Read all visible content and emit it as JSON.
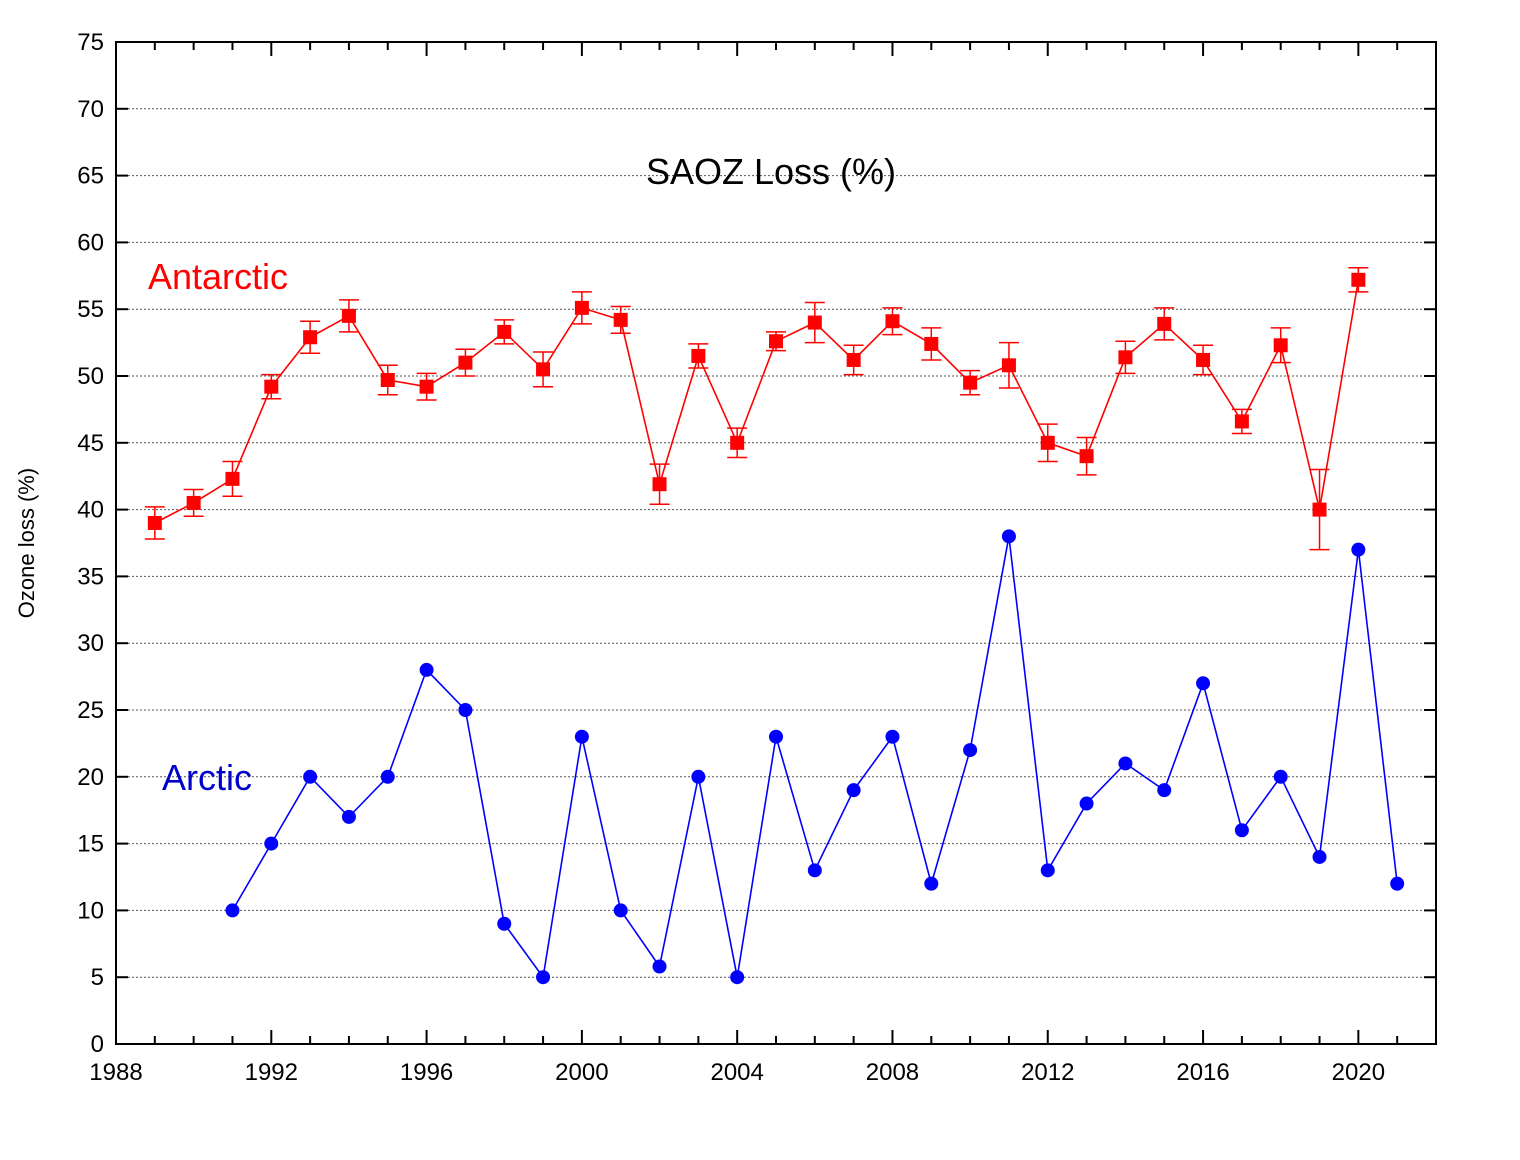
{
  "chart_data": {
    "type": "line",
    "title": "SAOZ Loss (%)",
    "xlabel": "",
    "ylabel": "Ozone loss (%)",
    "xlim": [
      1988,
      2022
    ],
    "ylim": [
      0,
      75
    ],
    "x_ticks": [
      1988,
      1992,
      1996,
      2000,
      2004,
      2008,
      2012,
      2016,
      2020
    ],
    "x_minor_step": 1,
    "y_ticks": [
      0,
      5,
      10,
      15,
      20,
      25,
      30,
      35,
      40,
      45,
      50,
      55,
      60,
      65,
      70,
      75
    ],
    "grid": "horizontal dotted",
    "series": [
      {
        "name": "Antarctic",
        "color": "#ff0000",
        "marker": "square",
        "x": [
          1989,
          1990,
          1991,
          1992,
          1993,
          1994,
          1995,
          1996,
          1997,
          1998,
          1999,
          2000,
          2001,
          2002,
          2003,
          2004,
          2005,
          2006,
          2007,
          2008,
          2009,
          2010,
          2011,
          2012,
          2013,
          2014,
          2015,
          2016,
          2017,
          2018,
          2019,
          2020
        ],
        "values": [
          39.0,
          40.5,
          42.3,
          49.2,
          52.9,
          54.5,
          49.7,
          49.2,
          51.0,
          53.3,
          50.5,
          55.1,
          54.2,
          41.9,
          51.5,
          45.0,
          52.6,
          54.0,
          51.2,
          54.1,
          52.4,
          49.5,
          50.8,
          45.0,
          44.0,
          51.4,
          53.9,
          51.2,
          46.6,
          52.3,
          40.0,
          57.2
        ],
        "error": [
          1.2,
          1.0,
          1.3,
          0.9,
          1.2,
          1.2,
          1.1,
          1.0,
          1.0,
          0.9,
          1.3,
          1.2,
          1.0,
          1.5,
          0.9,
          1.1,
          0.7,
          1.5,
          1.1,
          1.0,
          1.2,
          0.9,
          1.7,
          1.4,
          1.4,
          1.2,
          1.2,
          1.1,
          0.9,
          1.3,
          3.0,
          0.9
        ]
      },
      {
        "name": "Arctic",
        "color": "#0000ff",
        "marker": "circle",
        "x": [
          1991,
          1992,
          1993,
          1994,
          1995,
          1996,
          1997,
          1998,
          1999,
          2000,
          2001,
          2002,
          2003,
          2004,
          2005,
          2006,
          2007,
          2008,
          2009,
          2010,
          2011,
          2012,
          2013,
          2014,
          2015,
          2016,
          2017,
          2018,
          2019,
          2020,
          2021
        ],
        "values": [
          10,
          15,
          20,
          17,
          20,
          28,
          25,
          9,
          5,
          23,
          10,
          5.8,
          20,
          5,
          23,
          13,
          19,
          23,
          12,
          22,
          38,
          13,
          18,
          21,
          19,
          27,
          16,
          20,
          14,
          37,
          12
        ]
      }
    ]
  }
}
